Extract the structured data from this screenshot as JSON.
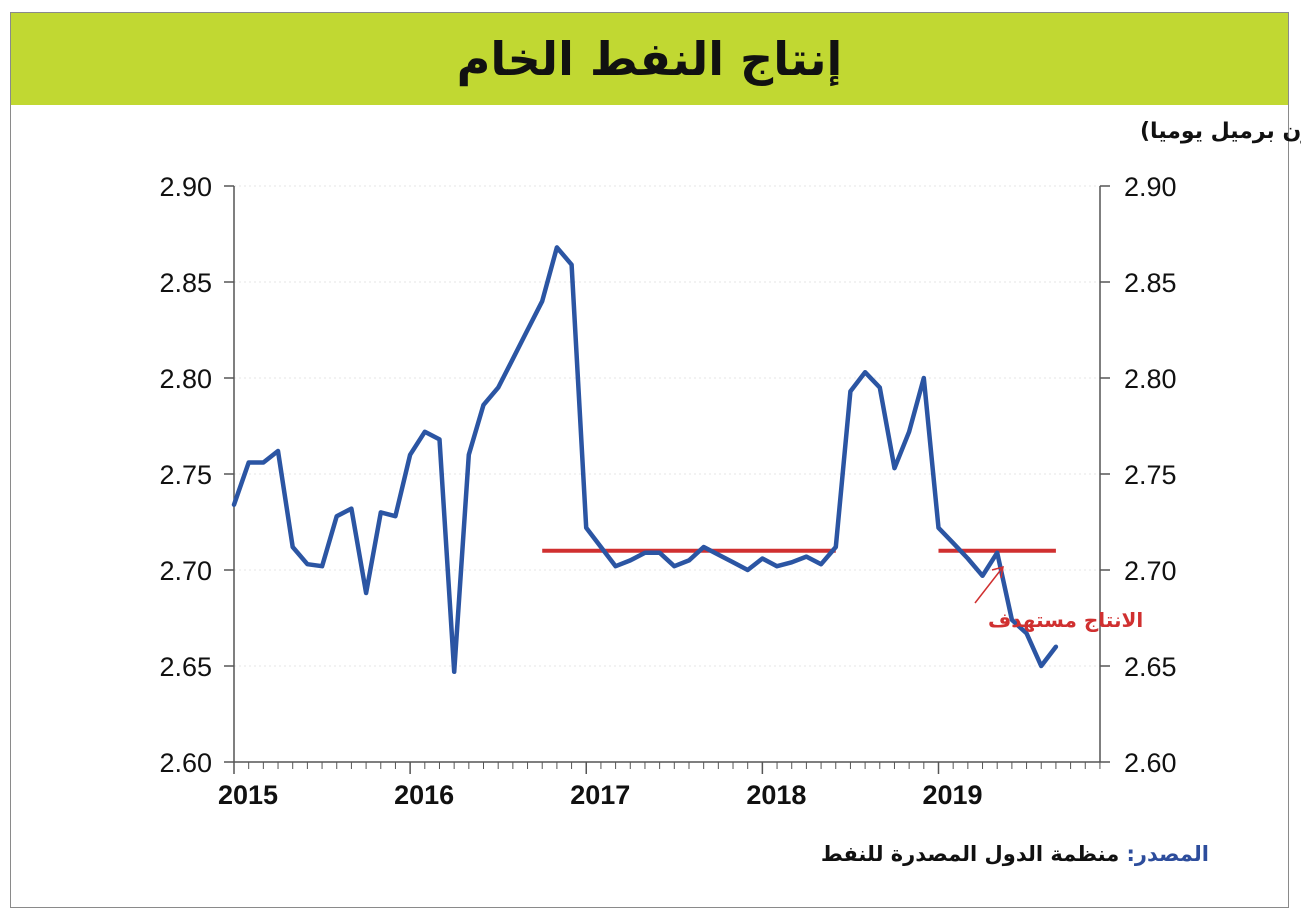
{
  "title": "إنتاج النفط الخام",
  "unit_label": "(مليون برميل يوميا)",
  "source": {
    "label": "المصدر:",
    "value": "منظمة الدول المصدرة للنفط"
  },
  "annotation": "الانتاج مستهدف",
  "colors": {
    "header_bg": "#c1d832",
    "series": "#2b55a3",
    "target": "#d03030"
  },
  "chart_data": {
    "type": "line",
    "title": "إنتاج النفط الخام",
    "ylabel": "(مليون برميل يوميا)",
    "ylim": [
      2.6,
      2.9
    ],
    "yticks": [
      "2.60",
      "2.65",
      "2.70",
      "2.75",
      "2.80",
      "2.85",
      "2.90"
    ],
    "xlim": [
      2015,
      2019.917
    ],
    "xticks": [
      "2015",
      "2016",
      "2017",
      "2018",
      "2019"
    ],
    "series": [
      {
        "x": [
          "2015-01",
          "2015-02",
          "2015-03",
          "2015-04",
          "2015-05",
          "2015-06",
          "2015-07",
          "2015-08",
          "2015-09",
          "2015-10",
          "2015-11",
          "2015-12",
          "2016-01",
          "2016-02",
          "2016-03",
          "2016-04",
          "2016-05",
          "2016-06",
          "2016-07",
          "2016-08",
          "2016-09",
          "2016-10",
          "2016-11",
          "2016-12",
          "2017-01",
          "2017-02",
          "2017-03",
          "2017-04",
          "2017-05",
          "2017-06",
          "2017-07",
          "2017-08",
          "2017-09",
          "2017-10",
          "2017-11",
          "2017-12",
          "2018-01",
          "2018-02",
          "2018-03",
          "2018-04",
          "2018-05",
          "2018-06",
          "2018-07",
          "2018-08",
          "2018-09",
          "2018-10",
          "2018-11",
          "2018-12",
          "2019-01",
          "2019-02",
          "2019-03",
          "2019-04",
          "2019-05",
          "2019-06",
          "2019-07",
          "2019-08",
          "2019-09"
        ],
        "values": [
          2.734,
          2.756,
          2.756,
          2.762,
          2.712,
          2.703,
          2.702,
          2.728,
          2.732,
          2.688,
          2.73,
          2.728,
          2.76,
          2.772,
          2.768,
          2.647,
          2.76,
          2.786,
          2.795,
          2.81,
          2.825,
          2.84,
          2.868,
          2.859,
          2.722,
          2.712,
          2.702,
          2.705,
          2.709,
          2.709,
          2.702,
          2.705,
          2.712,
          2.708,
          2.704,
          2.7,
          2.706,
          2.702,
          2.704,
          2.707,
          2.703,
          2.712,
          2.793,
          2.803,
          2.795,
          2.753,
          2.772,
          2.8,
          2.722,
          2.714,
          2.706,
          2.697,
          2.709,
          2.674,
          2.667,
          2.65,
          2.66
        ]
      }
    ],
    "target_lines": [
      {
        "x": [
          "2016-10",
          "2018-06"
        ],
        "value": 2.71
      },
      {
        "x": [
          "2019-01",
          "2019-09"
        ],
        "value": 2.71
      }
    ]
  }
}
